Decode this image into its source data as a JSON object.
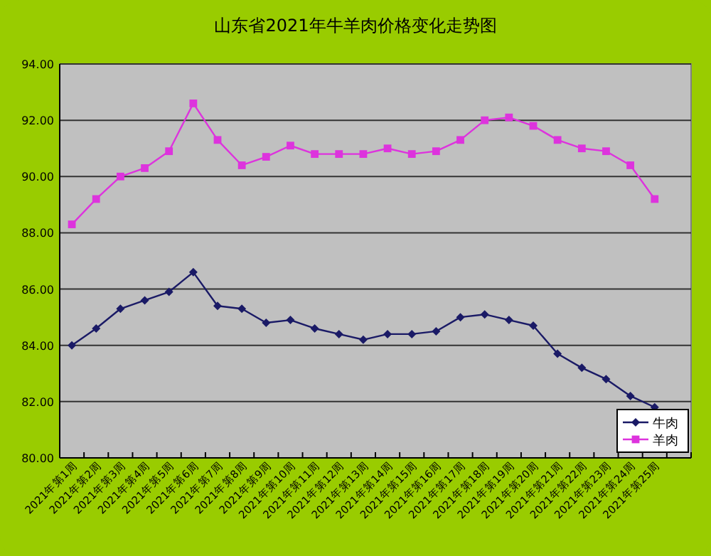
{
  "chart_data": {
    "type": "line",
    "title": "山东省2021年牛羊肉价格变化走势图",
    "categories": [
      "2021年第1周",
      "2021年第2周",
      "2021年第3周",
      "2021年第4周",
      "2021年第5周",
      "2021年第6周",
      "2021年第7周",
      "2021年第8周",
      "2021年第9周",
      "2021年第10周",
      "2021年第11周",
      "2021年第12周",
      "2021年第13周",
      "2021年第14周",
      "2021年第15周",
      "2021年第16周",
      "2021年第17周",
      "2021年第18周",
      "2021年第19周",
      "2021年第20周",
      "2021年第21周",
      "2021年第22周",
      "2021年第23周",
      "2021年第24周",
      "2021年第25周"
    ],
    "series": [
      {
        "name": "牛肉",
        "color": "#1a1a66",
        "marker": "diamond",
        "values": [
          84.0,
          84.6,
          85.3,
          85.6,
          85.9,
          86.6,
          85.4,
          85.3,
          84.8,
          84.9,
          84.6,
          84.4,
          84.2,
          84.4,
          84.4,
          84.5,
          85.0,
          85.1,
          84.9,
          84.7,
          83.7,
          83.2,
          82.8,
          82.2,
          81.8
        ]
      },
      {
        "name": "羊肉",
        "color": "#dd33dd",
        "marker": "square",
        "values": [
          88.3,
          89.2,
          90.0,
          90.3,
          90.9,
          92.6,
          91.3,
          90.4,
          90.7,
          91.1,
          90.8,
          90.8,
          90.8,
          91.0,
          90.8,
          90.9,
          91.3,
          92.0,
          92.1,
          91.8,
          91.3,
          91.0,
          90.9,
          90.4,
          89.2
        ]
      }
    ],
    "ylim": [
      80,
      94
    ],
    "yticks": [
      {
        "value": 80,
        "label": "80.00"
      },
      {
        "value": 82,
        "label": "82.00"
      },
      {
        "value": 84,
        "label": "84.00"
      },
      {
        "value": 86,
        "label": "86.00"
      },
      {
        "value": 88,
        "label": "88.00"
      },
      {
        "value": 90,
        "label": "90.00"
      },
      {
        "value": 92,
        "label": "92.00"
      },
      {
        "value": 94,
        "label": "94.00"
      }
    ],
    "grid": "y",
    "legend": "bottom right"
  }
}
